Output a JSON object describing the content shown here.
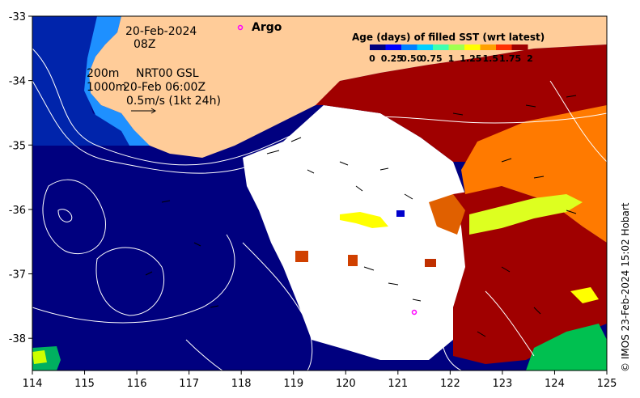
{
  "map": {
    "date": "20-Feb-2024",
    "hour": "08Z",
    "argo_label": "Argo",
    "contours_label_1": "200m",
    "contours_label_2": "1000m",
    "nrt_label": "NRT00 GSL",
    "nrt_time": "20-Feb 06:00Z",
    "vector_scale": "0.5m/s (1kt 24h)",
    "credit": "© IMOS 23-Feb-2024 15:02 Hobart",
    "x_ticks": [
      "114",
      "115",
      "116",
      "117",
      "118",
      "119",
      "120",
      "121",
      "122",
      "123",
      "124",
      "125"
    ],
    "y_ticks": [
      "-33",
      "-34",
      "-35",
      "-36",
      "-37",
      "-38"
    ],
    "lon_range": [
      114,
      125
    ],
    "lat_range": [
      -38.5,
      -33
    ],
    "argo_floats": [
      {
        "lon": 118.0,
        "lat": -33.18
      },
      {
        "lon": 121.35,
        "lat": -37.6
      }
    ]
  },
  "colorbar": {
    "title": "Age (days) of filled SST (wrt latest)",
    "ticks": [
      "0",
      "0.25",
      "0.50",
      "0.75",
      "1",
      "1.25",
      "1.5",
      "1.75",
      "2"
    ],
    "colors": [
      "#00007f",
      "#0000ff",
      "#0080ff",
      "#00d0ff",
      "#40ffb0",
      "#a0ff50",
      "#ffff00",
      "#ffa000",
      "#ff3000",
      "#a00000"
    ]
  },
  "colors": {
    "land": "#ffcc99",
    "deep_water": "#00007f",
    "no_data": "#ffffff",
    "recent": "#ff8c00",
    "old": "#a00000",
    "argo": "#ff00ff"
  }
}
